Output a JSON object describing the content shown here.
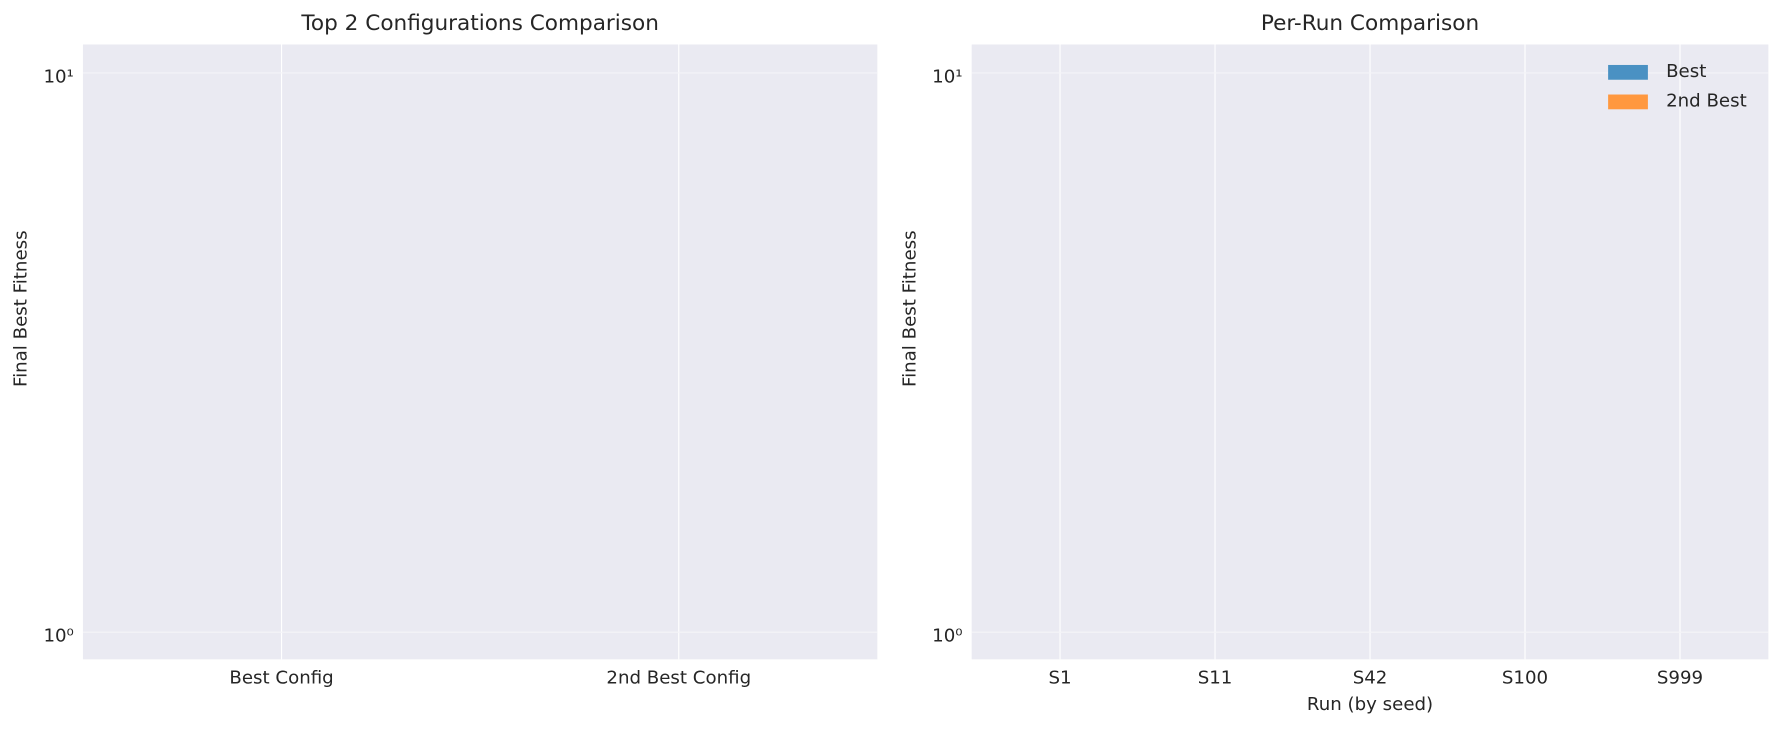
{
  "chart_data": [
    {
      "type": "bar",
      "title": "Top 2 Configurations Comparison",
      "ylabel": "Final Best Fitness",
      "categories": [
        "Best Config",
        "2nd Best Config"
      ],
      "log_scale": true,
      "ylim": [
        0.894,
        11.24
      ],
      "yticks": [
        {
          "value": 1,
          "label": "10⁰"
        },
        {
          "value": 10,
          "label": "10¹"
        }
      ],
      "grid": true
    },
    {
      "type": "bar",
      "title": "Per-Run Comparison",
      "ylabel": "Final Best Fitness",
      "xlabel": "Run (by seed)",
      "categories": [
        "S1",
        "S11",
        "S42",
        "S100",
        "S999"
      ],
      "series": [
        {
          "name": "Best",
          "color": "#4a91c3"
        },
        {
          "name": "2nd Best",
          "color": "#ff983f"
        }
      ],
      "log_scale": true,
      "ylim": [
        0.894,
        11.24
      ],
      "yticks": [
        {
          "value": 1,
          "label": "10⁰"
        },
        {
          "value": 10,
          "label": "10¹"
        }
      ],
      "grid": true,
      "legend": "upper right"
    }
  ]
}
